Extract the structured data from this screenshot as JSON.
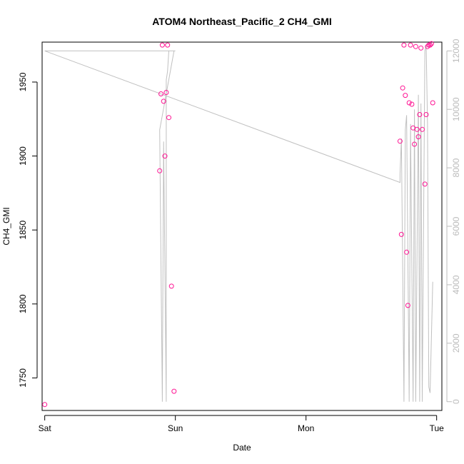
{
  "chart_data": {
    "type": "scatter",
    "title": "ATOM4 Northeast_Pacific_2 CH4_GMI",
    "xlabel": "Date",
    "ylabel": "CH4_GMI",
    "x_ticks": [
      "Sat",
      "Sun",
      "Mon",
      "Tue"
    ],
    "y_ticks": [
      1750,
      1800,
      1850,
      1900,
      1950
    ],
    "y_right_ticks": [
      0,
      2000,
      4000,
      6000,
      8000,
      10000,
      12000
    ],
    "xlim": [
      -0.02,
      3.04
    ],
    "ylim": [
      1728,
      1977
    ],
    "y_right_lim": [
      -300,
      12300
    ],
    "colors": {
      "points": "#ff1493",
      "line": "#c0c0c0",
      "right_axis": "#bbbbbb",
      "box": "#000000"
    },
    "series": [
      {
        "type": "scatter",
        "axis": "left",
        "points": [
          {
            "x": 0.0,
            "y": 1732
          },
          {
            "x": 0.88,
            "y": 1890
          },
          {
            "x": 0.89,
            "y": 1942
          },
          {
            "x": 0.9,
            "y": 1975
          },
          {
            "x": 0.91,
            "y": 1937
          },
          {
            "x": 0.92,
            "y": 1900
          },
          {
            "x": 0.93,
            "y": 1943
          },
          {
            "x": 0.94,
            "y": 1975
          },
          {
            "x": 0.95,
            "y": 1926
          },
          {
            "x": 0.97,
            "y": 1812
          },
          {
            "x": 0.99,
            "y": 1741
          },
          {
            "x": 2.72,
            "y": 1910
          },
          {
            "x": 2.73,
            "y": 1847
          },
          {
            "x": 2.74,
            "y": 1946
          },
          {
            "x": 2.75,
            "y": 1975
          },
          {
            "x": 2.76,
            "y": 1941
          },
          {
            "x": 2.77,
            "y": 1835
          },
          {
            "x": 2.78,
            "y": 1799
          },
          {
            "x": 2.79,
            "y": 1936
          },
          {
            "x": 2.8,
            "y": 1975
          },
          {
            "x": 2.81,
            "y": 1935
          },
          {
            "x": 2.82,
            "y": 1919
          },
          {
            "x": 2.83,
            "y": 1908
          },
          {
            "x": 2.84,
            "y": 1974
          },
          {
            "x": 2.85,
            "y": 1918
          },
          {
            "x": 2.86,
            "y": 1913
          },
          {
            "x": 2.87,
            "y": 1928
          },
          {
            "x": 2.88,
            "y": 1973
          },
          {
            "x": 2.89,
            "y": 1918
          },
          {
            "x": 2.91,
            "y": 1881
          },
          {
            "x": 2.92,
            "y": 1928
          },
          {
            "x": 2.93,
            "y": 1974
          },
          {
            "x": 2.94,
            "y": 1975
          },
          {
            "x": 2.95,
            "y": 1975
          },
          {
            "x": 2.96,
            "y": 1976
          },
          {
            "x": 2.97,
            "y": 1936
          }
        ]
      },
      {
        "type": "line",
        "axis": "right",
        "points": [
          {
            "x": 0.0,
            "y": 12000
          },
          {
            "x": 0.08,
            "y": 12000
          },
          {
            "x": 0.99,
            "y": 12000
          },
          {
            "x": 1.0,
            "y": 12000
          },
          {
            "x": 0.99,
            "y": 12000
          },
          {
            "x": 0.88,
            "y": 9300
          },
          {
            "x": 0.9,
            "y": 0
          },
          {
            "x": 0.91,
            "y": 8900
          },
          {
            "x": 0.93,
            "y": 0
          },
          {
            "x": 0.93,
            "y": 11000
          },
          {
            "x": 0.94,
            "y": 11300
          },
          {
            "x": 0.95,
            "y": 12000
          },
          {
            "x": 0.08,
            "y": 12000
          },
          {
            "x": 0.0,
            "y": 12000
          },
          {
            "x": 2.72,
            "y": 7500
          },
          {
            "x": 2.72,
            "y": 7800
          },
          {
            "x": 2.73,
            "y": 9000
          },
          {
            "x": 2.75,
            "y": 0
          },
          {
            "x": 2.76,
            "y": 9300
          },
          {
            "x": 2.77,
            "y": 9800
          },
          {
            "x": 2.79,
            "y": 0
          },
          {
            "x": 2.8,
            "y": 9500
          },
          {
            "x": 2.82,
            "y": 0
          },
          {
            "x": 2.83,
            "y": 10000
          },
          {
            "x": 2.84,
            "y": 0
          },
          {
            "x": 2.86,
            "y": 10500
          },
          {
            "x": 2.87,
            "y": 0
          },
          {
            "x": 2.88,
            "y": 10200
          },
          {
            "x": 2.89,
            "y": 0
          },
          {
            "x": 2.91,
            "y": 12000
          },
          {
            "x": 2.92,
            "y": 12200
          },
          {
            "x": 2.93,
            "y": 9500
          },
          {
            "x": 2.94,
            "y": 500
          },
          {
            "x": 2.95,
            "y": 300
          },
          {
            "x": 2.97,
            "y": 4100
          }
        ]
      }
    ]
  }
}
